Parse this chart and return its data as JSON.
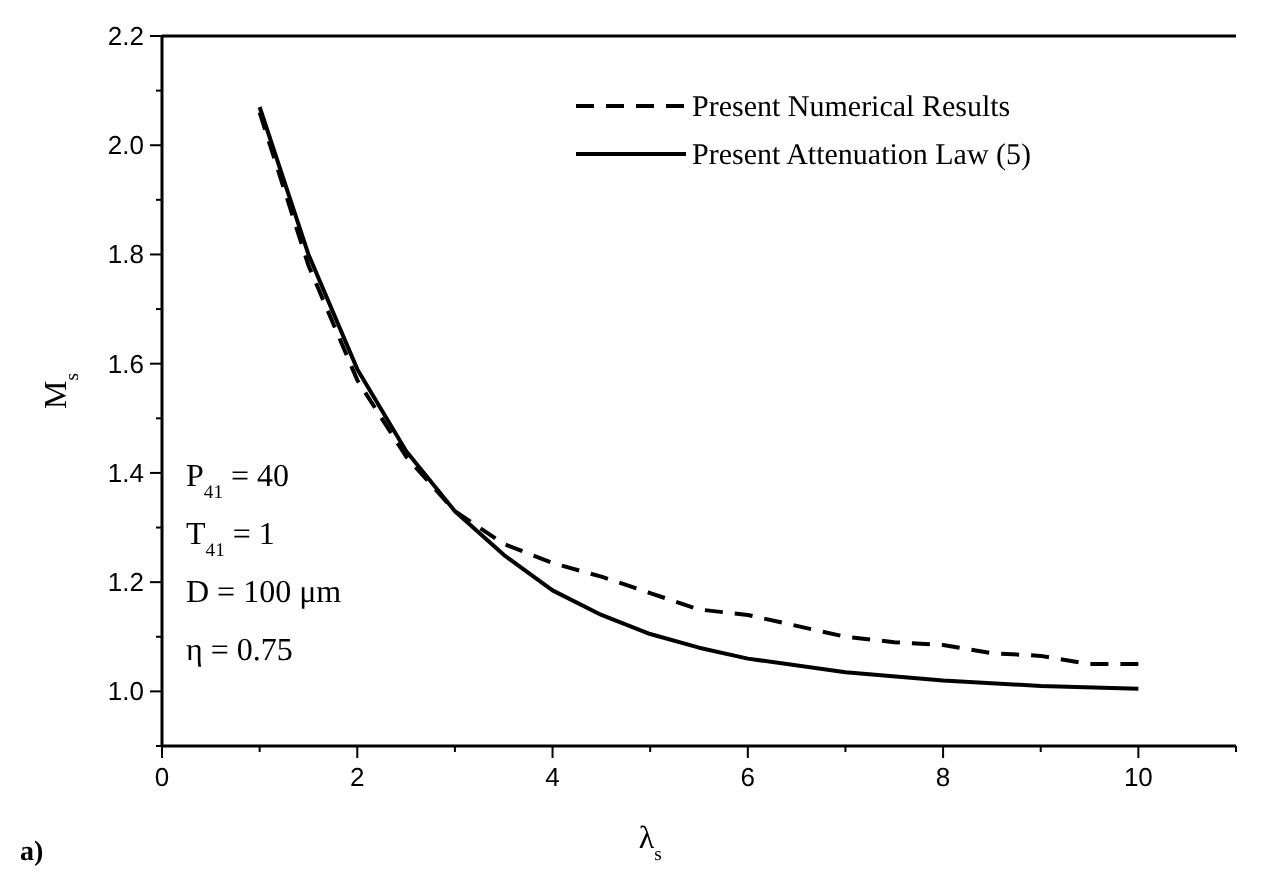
{
  "chart_data": {
    "type": "line",
    "xlabel": "λ$_{s}$",
    "ylabel": "M$_{s}$",
    "xlim": [
      0,
      11
    ],
    "ylim": [
      0.9,
      2.2
    ],
    "xticks": [
      0,
      {
        "value": 1,
        "label": null
      },
      2,
      {
        "value": 3,
        "label": null
      },
      4,
      {
        "value": 5,
        "label": null
      },
      6,
      {
        "value": 7,
        "label": null
      },
      8,
      {
        "value": 9,
        "label": null
      },
      10,
      {
        "value": 11,
        "label": null
      }
    ],
    "yticks": [
      {
        "value": 0.9,
        "label": null
      },
      {
        "value": 1.0,
        "label": "1.0"
      },
      {
        "value": 1.1,
        "label": null
      },
      1.2,
      {
        "value": 1.3,
        "label": null
      },
      1.4,
      {
        "value": 1.5,
        "label": null
      },
      1.6,
      {
        "value": 1.7,
        "label": null
      },
      1.8,
      {
        "value": 1.9,
        "label": null
      },
      {
        "value": 2.0,
        "label": "2.0"
      },
      {
        "value": 2.1,
        "label": null
      },
      2.2
    ],
    "legend": "top right",
    "grid": false,
    "series": [
      {
        "name": "Present Numerical Results",
        "color": "#000000",
        "line_style": "dashed",
        "x": [
          1,
          1.5,
          2,
          2.5,
          3,
          3.5,
          4,
          4.5,
          5,
          5.5,
          6,
          6.5,
          7,
          7.5,
          8,
          8.5,
          9,
          9.5,
          10
        ],
        "values": [
          2.06,
          1.78,
          1.57,
          1.43,
          1.33,
          1.27,
          1.235,
          1.21,
          1.18,
          1.15,
          1.14,
          1.12,
          1.1,
          1.09,
          1.085,
          1.07,
          1.065,
          1.05,
          1.05
        ]
      },
      {
        "name": "Present Attenuation Law (5)",
        "color": "#000000",
        "line_style": "solid",
        "x": [
          1,
          1.5,
          2,
          2.5,
          3,
          3.5,
          4,
          4.5,
          5,
          5.5,
          6,
          7,
          8,
          9,
          10
        ],
        "values": [
          2.07,
          1.8,
          1.59,
          1.44,
          1.33,
          1.25,
          1.185,
          1.14,
          1.105,
          1.08,
          1.06,
          1.035,
          1.02,
          1.01,
          1.005
        ]
      }
    ],
    "annotations": [
      "P$_{41}$ = 40",
      "T$_{41}$ = 1",
      "D = 100 μm",
      "η = 0.75",
      "a)"
    ]
  }
}
